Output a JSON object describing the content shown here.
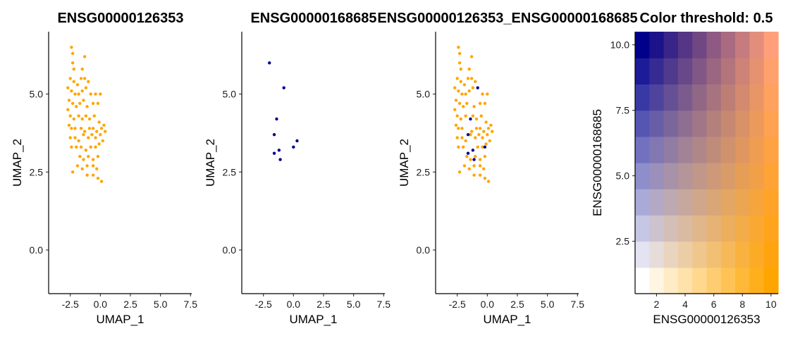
{
  "chart_data": [
    {
      "type": "scatter",
      "title": "ENSG00000126353",
      "xlabel": "UMAP_1",
      "ylabel": "UMAP_2",
      "xlim": [
        -4.3,
        7.6
      ],
      "ylim": [
        -1.4,
        7.0
      ],
      "xticks": [
        "-2.5",
        "0.0",
        "2.5",
        "5.0",
        "7.5"
      ],
      "yticks": [
        "0.0",
        "2.5",
        "5.0"
      ],
      "series": [
        {
          "color": "#FFA500",
          "points": [
            [
              -2.4,
              6.5
            ],
            [
              -2.3,
              6.3
            ],
            [
              -2.3,
              6.0
            ],
            [
              -2.2,
              5.8
            ],
            [
              -1.3,
              6.2
            ],
            [
              -1.5,
              5.8
            ],
            [
              -2.5,
              5.5
            ],
            [
              -2.2,
              5.4
            ],
            [
              -1.9,
              5.3
            ],
            [
              -1.6,
              5.5
            ],
            [
              -1.3,
              5.5
            ],
            [
              -1.0,
              5.4
            ],
            [
              -2.7,
              5.2
            ],
            [
              -2.4,
              5.1
            ],
            [
              -2.1,
              5.0
            ],
            [
              -1.8,
              5.0
            ],
            [
              -1.5,
              5.1
            ],
            [
              -1.2,
              5.2
            ],
            [
              -0.8,
              5.0
            ],
            [
              -0.4,
              5.0
            ],
            [
              0.0,
              5.0
            ],
            [
              -2.6,
              4.8
            ],
            [
              -2.3,
              4.7
            ],
            [
              -2.0,
              4.6
            ],
            [
              -1.7,
              4.7
            ],
            [
              -1.4,
              4.8
            ],
            [
              -1.1,
              4.6
            ],
            [
              -0.6,
              4.7
            ],
            [
              -0.2,
              4.7
            ],
            [
              -2.7,
              4.5
            ],
            [
              -2.5,
              4.3
            ],
            [
              -2.2,
              4.2
            ],
            [
              -1.8,
              4.3
            ],
            [
              -1.5,
              4.2
            ],
            [
              -1.2,
              4.3
            ],
            [
              -0.9,
              4.2
            ],
            [
              -0.5,
              4.3
            ],
            [
              -0.1,
              4.1
            ],
            [
              -2.6,
              4.0
            ],
            [
              -2.4,
              3.9
            ],
            [
              -2.1,
              3.9
            ],
            [
              -1.6,
              3.9
            ],
            [
              -1.3,
              3.8
            ],
            [
              -0.9,
              3.9
            ],
            [
              -0.6,
              3.9
            ],
            [
              -0.3,
              3.8
            ],
            [
              0.1,
              3.9
            ],
            [
              0.3,
              4.0
            ],
            [
              -2.5,
              3.6
            ],
            [
              -2.1,
              3.6
            ],
            [
              -1.8,
              3.5
            ],
            [
              -1.4,
              3.7
            ],
            [
              -1.0,
              3.6
            ],
            [
              -0.7,
              3.7
            ],
            [
              -0.4,
              3.6
            ],
            [
              0.0,
              3.7
            ],
            [
              0.4,
              3.8
            ],
            [
              -2.4,
              3.3
            ],
            [
              -2.0,
              3.3
            ],
            [
              -1.6,
              3.3
            ],
            [
              -1.2,
              3.2
            ],
            [
              -0.8,
              3.3
            ],
            [
              -0.4,
              3.3
            ],
            [
              -0.1,
              3.4
            ],
            [
              0.2,
              3.5
            ],
            [
              -1.7,
              3.0
            ],
            [
              -1.4,
              2.9
            ],
            [
              -1.0,
              3.0
            ],
            [
              -0.6,
              2.9
            ],
            [
              -0.2,
              3.0
            ],
            [
              -1.9,
              2.7
            ],
            [
              -1.5,
              2.6
            ],
            [
              -1.1,
              2.7
            ],
            [
              -0.6,
              2.7
            ],
            [
              -2.3,
              2.5
            ],
            [
              -1.1,
              2.4
            ],
            [
              -0.6,
              2.4
            ],
            [
              -0.2,
              2.3
            ],
            [
              0.1,
              2.2
            ],
            [
              -0.3,
              2.6
            ]
          ]
        }
      ]
    },
    {
      "type": "scatter",
      "title": "ENSG00000168685",
      "xlabel": "UMAP_1",
      "ylabel": "UMAP_2",
      "xlim": [
        -4.3,
        7.6
      ],
      "ylim": [
        -1.4,
        7.0
      ],
      "xticks": [
        "-2.5",
        "0.0",
        "2.5",
        "5.0",
        "7.5"
      ],
      "yticks": [
        "0.0",
        "2.5",
        "5.0"
      ],
      "series": [
        {
          "color": "#00008B",
          "points": [
            [
              -2.0,
              6.0
            ],
            [
              -0.8,
              5.2
            ],
            [
              -1.4,
              4.2
            ],
            [
              -1.6,
              3.7
            ],
            [
              -1.6,
              3.1
            ],
            [
              -1.2,
              3.2
            ],
            [
              -1.1,
              2.9
            ],
            [
              0.3,
              3.5
            ],
            [
              0.0,
              3.3
            ]
          ]
        }
      ]
    },
    {
      "type": "scatter",
      "title": "ENSG00000126353_ENSG00000168685",
      "xlabel": "UMAP_1",
      "ylabel": "UMAP_2",
      "xlim": [
        -4.3,
        7.6
      ],
      "ylim": [
        -1.4,
        7.0
      ],
      "xticks": [
        "-2.5",
        "0.0",
        "2.5",
        "5.0",
        "7.5"
      ],
      "yticks": [
        "0.0",
        "2.5",
        "5.0"
      ],
      "series": [
        {
          "color": "#FFA500",
          "points": [
            [
              -2.4,
              6.5
            ],
            [
              -2.3,
              6.3
            ],
            [
              -2.3,
              6.0
            ],
            [
              -2.2,
              5.8
            ],
            [
              -1.3,
              6.2
            ],
            [
              -1.5,
              5.8
            ],
            [
              -2.5,
              5.5
            ],
            [
              -2.2,
              5.4
            ],
            [
              -1.9,
              5.3
            ],
            [
              -1.6,
              5.5
            ],
            [
              -1.3,
              5.5
            ],
            [
              -1.0,
              5.4
            ],
            [
              -2.7,
              5.2
            ],
            [
              -2.4,
              5.1
            ],
            [
              -2.1,
              5.0
            ],
            [
              -1.8,
              5.0
            ],
            [
              -1.5,
              5.1
            ],
            [
              -1.2,
              5.2
            ],
            [
              -0.4,
              5.0
            ],
            [
              0.0,
              5.0
            ],
            [
              -2.6,
              4.8
            ],
            [
              -2.3,
              4.7
            ],
            [
              -2.0,
              4.6
            ],
            [
              -1.7,
              4.7
            ],
            [
              -1.1,
              4.6
            ],
            [
              -0.6,
              4.7
            ],
            [
              -0.2,
              4.7
            ],
            [
              -2.7,
              4.5
            ],
            [
              -2.5,
              4.3
            ],
            [
              -2.2,
              4.2
            ],
            [
              -1.8,
              4.3
            ],
            [
              -1.2,
              4.3
            ],
            [
              -0.9,
              4.2
            ],
            [
              -0.5,
              4.3
            ],
            [
              -0.1,
              4.1
            ],
            [
              -2.6,
              4.0
            ],
            [
              -2.4,
              3.9
            ],
            [
              -2.1,
              3.9
            ],
            [
              -1.3,
              3.8
            ],
            [
              -0.9,
              3.9
            ],
            [
              -0.6,
              3.9
            ],
            [
              -0.3,
              3.8
            ],
            [
              0.1,
              3.9
            ],
            [
              0.3,
              4.0
            ],
            [
              -2.5,
              3.6
            ],
            [
              -2.1,
              3.6
            ],
            [
              -1.8,
              3.5
            ],
            [
              -1.4,
              3.7
            ],
            [
              -1.0,
              3.6
            ],
            [
              -0.7,
              3.7
            ],
            [
              -0.4,
              3.6
            ],
            [
              0.0,
              3.7
            ],
            [
              0.4,
              3.8
            ],
            [
              -2.4,
              3.3
            ],
            [
              -2.0,
              3.3
            ],
            [
              -0.8,
              3.3
            ],
            [
              -0.4,
              3.3
            ],
            [
              -0.1,
              3.4
            ],
            [
              0.2,
              3.5
            ],
            [
              -1.7,
              3.0
            ],
            [
              -1.4,
              2.9
            ],
            [
              -1.0,
              3.0
            ],
            [
              -0.6,
              2.9
            ],
            [
              -0.2,
              3.0
            ],
            [
              -1.9,
              2.7
            ],
            [
              -1.5,
              2.6
            ],
            [
              -1.1,
              2.7
            ],
            [
              -0.6,
              2.7
            ],
            [
              -2.3,
              2.5
            ],
            [
              -1.1,
              2.4
            ],
            [
              -0.6,
              2.4
            ],
            [
              -0.2,
              2.3
            ],
            [
              0.1,
              2.2
            ],
            [
              -0.3,
              2.6
            ]
          ]
        },
        {
          "color": "#00008B",
          "points": [
            [
              -0.8,
              5.2
            ],
            [
              -1.4,
              4.2
            ],
            [
              -1.6,
              3.7
            ],
            [
              -1.6,
              3.1
            ],
            [
              -1.2,
              3.2
            ],
            [
              -1.1,
              2.9
            ],
            [
              -0.2,
              3.3
            ]
          ]
        }
      ]
    },
    {
      "type": "heatmap",
      "title": "Color threshold: 0.5",
      "xlabel": "ENSG00000126353",
      "ylabel": "ENSG00000168685",
      "xlim": [
        0.5,
        10.5
      ],
      "ylim": [
        0.5,
        10.5
      ],
      "xticks": [
        "2",
        "4",
        "6",
        "8",
        "10"
      ],
      "yticks": [
        "2.5",
        "5.0",
        "7.5",
        "10.0"
      ],
      "grid_size": 10,
      "low_color": "#FFFFFF",
      "x_color": "#FFA500",
      "y_color": "#00008B",
      "high_color": "#FFA07A"
    }
  ]
}
